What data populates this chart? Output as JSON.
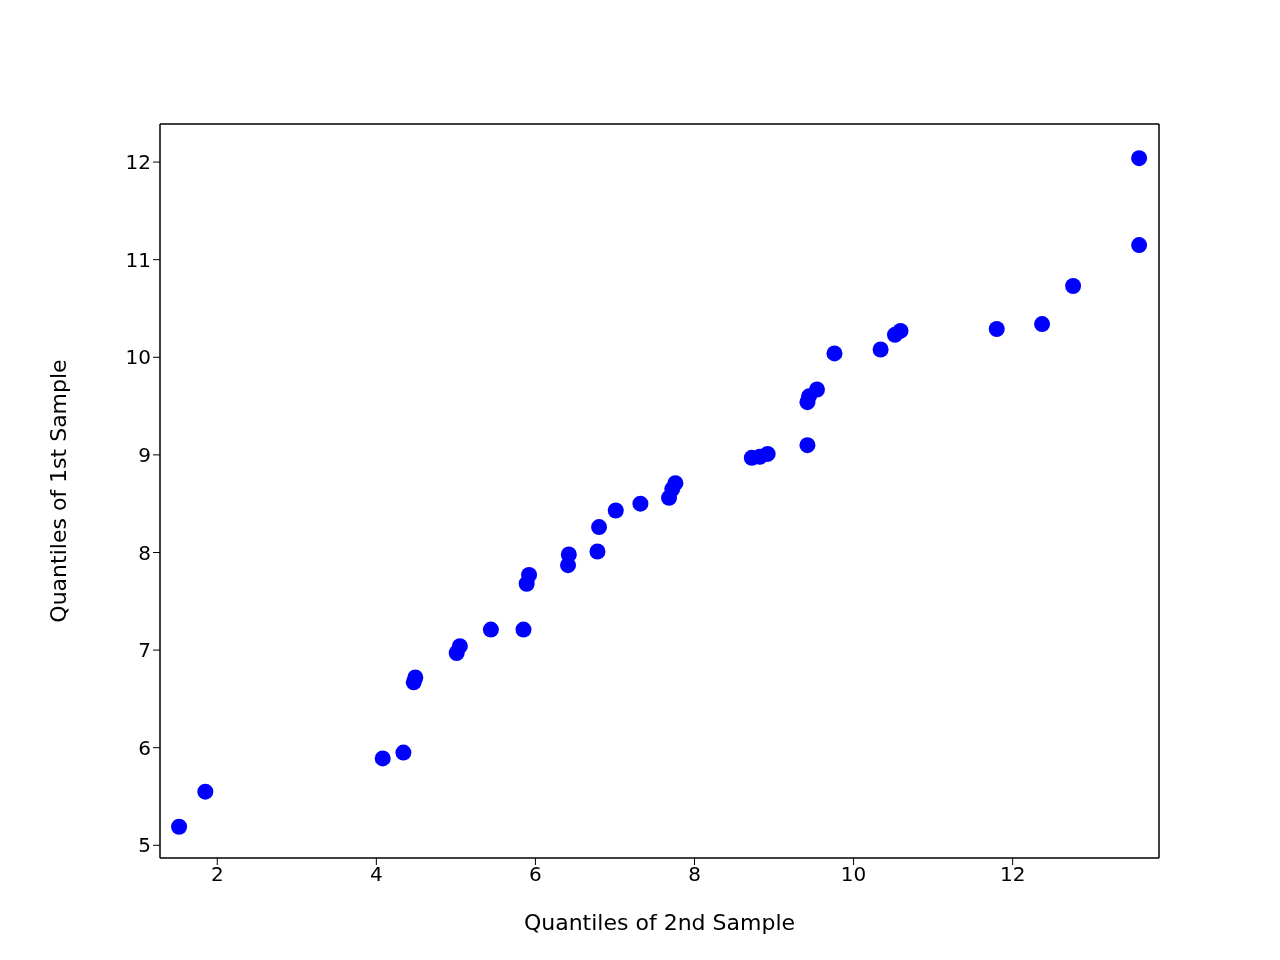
{
  "chart_data": {
    "type": "scatter",
    "xlabel": "Quantiles of 2nd Sample",
    "ylabel": "Quantiles of 1st Sample",
    "x": [
      1.52,
      1.85,
      4.08,
      4.34,
      4.47,
      4.49,
      5.01,
      5.05,
      5.44,
      5.85,
      5.89,
      5.92,
      6.41,
      6.42,
      6.78,
      6.8,
      7.01,
      7.32,
      7.68,
      7.72,
      7.76,
      8.72,
      8.82,
      8.92,
      9.42,
      9.42,
      9.44,
      9.54,
      9.76,
      10.34,
      10.52,
      10.59,
      11.8,
      12.37,
      12.76,
      13.59,
      13.59
    ],
    "values": [
      5.19,
      5.55,
      5.89,
      5.95,
      6.67,
      6.72,
      6.97,
      7.04,
      7.21,
      7.21,
      7.68,
      7.77,
      7.87,
      7.98,
      8.01,
      8.26,
      8.43,
      8.5,
      8.56,
      8.65,
      8.71,
      8.97,
      8.98,
      9.01,
      9.1,
      9.54,
      9.6,
      9.67,
      10.04,
      10.08,
      10.23,
      10.27,
      10.29,
      10.34,
      10.73,
      11.15,
      12.04
    ],
    "color": "#0000ff",
    "marker": "circle",
    "xlim": [
      1.28,
      13.84
    ],
    "xticks": [
      2,
      4,
      6,
      8,
      10,
      12
    ],
    "ylim": [
      4.87,
      12.39
    ],
    "yticks": [
      5,
      6,
      7,
      8,
      9,
      10,
      11,
      12
    ],
    "grid": false
  }
}
